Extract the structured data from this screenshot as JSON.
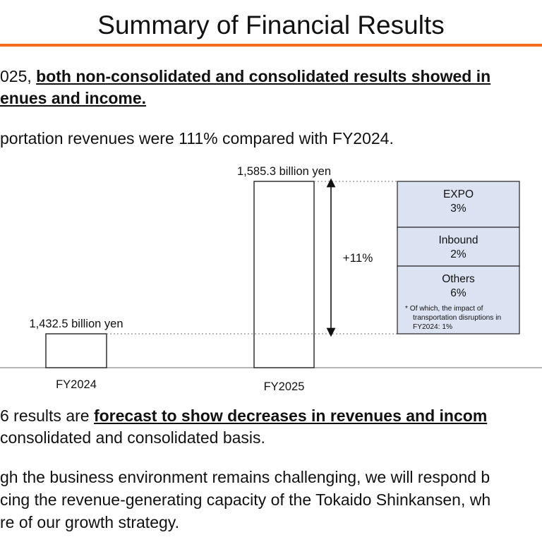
{
  "slide": {
    "title": "Summary of Financial Results",
    "accent_color": "#f07020"
  },
  "paragraph1": {
    "line1_plain": "025, ",
    "line1_bold": "both non-consolidated and consolidated results showed in",
    "line2_bold": "enues and income."
  },
  "paragraph2": {
    "line1": "portation revenues were 111% compared with FY2024."
  },
  "paragraph3": {
    "line1_plain": "6 results are ",
    "line1_bold": "forecast to show decreases in revenues and incom",
    "line2": "consolidated and consolidated basis."
  },
  "paragraph4": {
    "line1": "gh the business environment remains challenging, we will respond b",
    "line2": "cing the revenue-generating capacity of the Tokaido Shinkansen, wh",
    "line3": "re of our growth strategy."
  },
  "chart_data": {
    "type": "bar",
    "categories": [
      "FY2024",
      "FY2025"
    ],
    "values": [
      1432.5,
      1585.3
    ],
    "value_labels": [
      "1,432.5 billion yen",
      "1,585.3 billion yen"
    ],
    "difference_label": "+11%",
    "breakdown": [
      {
        "name": "EXPO",
        "value_label": "3%"
      },
      {
        "name": "Inbound",
        "value_label": "2%"
      },
      {
        "name": "Others",
        "value_label": "6%"
      }
    ],
    "note_lines": [
      "* Of which, the impact of",
      "transportation disruptions in",
      "FY2024: 1%"
    ],
    "breakdown_fill": "#dbe3f3"
  }
}
